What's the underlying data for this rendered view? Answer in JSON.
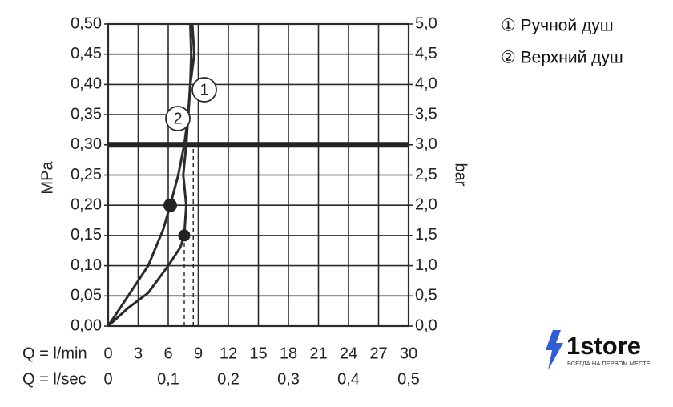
{
  "chart_data": {
    "type": "line",
    "y_label": "MPa",
    "y2_label": "bar",
    "x_label": "Q = l/min",
    "x2_label": "Q = l/sec",
    "xlim": [
      0,
      30
    ],
    "xticks": [
      0,
      3,
      6,
      9,
      12,
      15,
      18,
      21,
      24,
      27,
      30
    ],
    "x2lim": [
      0,
      0.5
    ],
    "x2ticks": [
      0,
      {
        "value": 0.1,
        "label": "0,1"
      },
      {
        "value": 0.2,
        "label": "0,2"
      },
      {
        "value": 0.3,
        "label": "0,3"
      },
      {
        "value": 0.4,
        "label": "0,4"
      },
      {
        "value": 0.5,
        "label": "0,5"
      }
    ],
    "ylim": [
      0,
      0.5
    ],
    "yticks": [
      {
        "value": 0,
        "label": "0,00"
      },
      {
        "value": 0.05,
        "label": "0,05"
      },
      {
        "value": 0.1,
        "label": "0,10"
      },
      {
        "value": 0.15,
        "label": "0,15"
      },
      {
        "value": 0.2,
        "label": "0,20"
      },
      {
        "value": 0.25,
        "label": "0,25"
      },
      {
        "value": 0.3,
        "label": "0,30"
      },
      {
        "value": 0.35,
        "label": "0,35"
      },
      {
        "value": 0.4,
        "label": "0,40"
      },
      {
        "value": 0.45,
        "label": "0,45"
      },
      {
        "value": 0.5,
        "label": "0,50"
      }
    ],
    "y2lim": [
      0,
      5
    ],
    "y2ticks": [
      {
        "value": 0,
        "label": "0,0"
      },
      {
        "value": 0.5,
        "label": "0,5"
      },
      {
        "value": 1,
        "label": "1,0"
      },
      {
        "value": 1.5,
        "label": "1,5"
      },
      {
        "value": 2,
        "label": "2,0"
      },
      {
        "value": 2.5,
        "label": "2,5"
      },
      {
        "value": 3,
        "label": "3,0"
      },
      {
        "value": 3.5,
        "label": "3,5"
      },
      {
        "value": 4,
        "label": "4,0"
      },
      {
        "value": 4.5,
        "label": "4,5"
      },
      {
        "value": 5,
        "label": "5,0"
      }
    ],
    "grid": true,
    "color": "#2b2b2b",
    "highlight_y": 0.3,
    "series": [
      {
        "name": "① Ручной душ",
        "label": "1",
        "color": "#2b2b2b",
        "x": [
          0,
          2,
          4,
          6,
          7.2,
          7.6,
          7.8,
          7.5,
          7.8,
          8.2,
          8.6,
          8.4
        ],
        "values": [
          0,
          0.03,
          0.055,
          0.1,
          0.13,
          0.15,
          0.2,
          0.25,
          0.3,
          0.4,
          0.45,
          0.5
        ]
      },
      {
        "name": "② Верхний душ",
        "label": "2",
        "color": "#2b2b2b",
        "x": [
          0,
          2,
          4,
          5.5,
          6.2,
          7,
          7.6,
          8,
          8.2,
          8.3,
          8.2
        ],
        "values": [
          0,
          0.05,
          0.1,
          0.16,
          0.2,
          0.25,
          0.3,
          0.35,
          0.4,
          0.45,
          0.5
        ]
      }
    ],
    "points": [
      {
        "x": 7.6,
        "y": 0.15
      },
      {
        "x": 6.2,
        "y": 0.2
      }
    ],
    "reference_lines": [
      {
        "x": 7.6,
        "y": 0.15
      },
      {
        "x": 8.5,
        "y": 0.3
      }
    ]
  },
  "watermark": {
    "brand": "1store",
    "tagline": "ВСЕГДА НА ПЕРВОМ МЕСТЕ"
  }
}
